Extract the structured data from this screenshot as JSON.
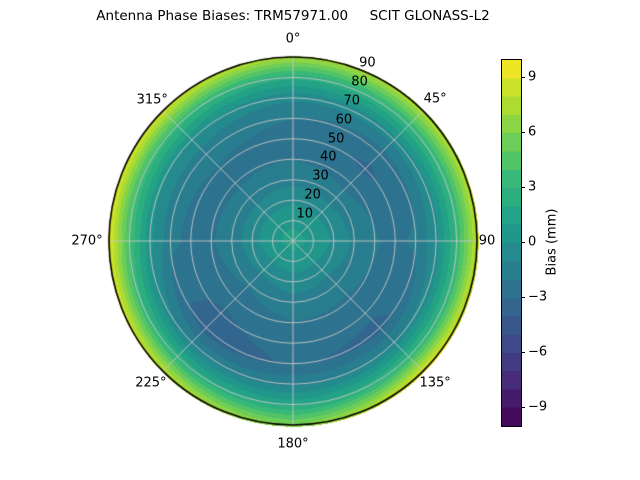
{
  "chart_data": {
    "type": "heatmap",
    "projection": "polar",
    "title": "Antenna Phase Biases: TRM57971.00     SCIT GLONASS-L2",
    "azimuth_tick_labels": [
      "0°",
      "45°",
      "90",
      "135°",
      "180°",
      "225°",
      "270°",
      "315°"
    ],
    "azimuth_deg": [
      0,
      45,
      90,
      135,
      180,
      225,
      270,
      315
    ],
    "zenith_tick_labels": [
      "10",
      "20",
      "30",
      "40",
      "50",
      "60",
      "70",
      "80",
      "90"
    ],
    "zenith_deg": [
      0,
      10,
      20,
      30,
      40,
      50,
      60,
      70,
      80,
      90
    ],
    "bias_grid_mm": [
      [
        1.3,
        0.8,
        -0.2,
        -1.3,
        -2.0,
        -2.3,
        -2.0,
        -0.8,
        2.2,
        7.2
      ],
      [
        1.3,
        0.7,
        -0.4,
        -1.6,
        -2.4,
        -3.2,
        -2.6,
        -0.5,
        3.0,
        7.8
      ],
      [
        1.3,
        0.8,
        -0.2,
        -1.2,
        -1.9,
        -2.2,
        -1.8,
        -0.2,
        3.2,
        8.2
      ],
      [
        1.3,
        0.5,
        -0.7,
        -1.6,
        -2.2,
        -2.8,
        -3.3,
        -0.8,
        3.2,
        9.3
      ],
      [
        1.3,
        0.6,
        -0.5,
        -1.4,
        -2.1,
        -2.6,
        -2.9,
        -1.2,
        1.8,
        6.2
      ],
      [
        1.3,
        0.4,
        -0.8,
        -1.9,
        -2.6,
        -3.2,
        -3.6,
        -1.2,
        2.6,
        8.2
      ],
      [
        1.3,
        0.8,
        -0.4,
        -1.5,
        -2.1,
        -2.3,
        -1.7,
        0.3,
        3.8,
        9.2
      ],
      [
        1.3,
        0.8,
        -0.4,
        -1.5,
        -2.2,
        -2.1,
        -1.6,
        -0.1,
        3.3,
        8.6
      ]
    ],
    "colorbar": {
      "label": "Bias (mm)",
      "ticks": [
        9,
        6,
        3,
        0,
        -3,
        -6,
        -9
      ],
      "range": [
        -10,
        10
      ],
      "levels": 20,
      "position": "right"
    },
    "colors": {
      "viridis_anchors": [
        "#440154",
        "#482878",
        "#3e4989",
        "#31688e",
        "#26828e",
        "#1f9e89",
        "#35b779",
        "#6ece58",
        "#b5de2b",
        "#fde725"
      ],
      "grid_line": "#c8c8c8",
      "outline": "#000000",
      "background": "#ffffff",
      "text": "#000000"
    },
    "grid": true,
    "legend_position": "none"
  }
}
